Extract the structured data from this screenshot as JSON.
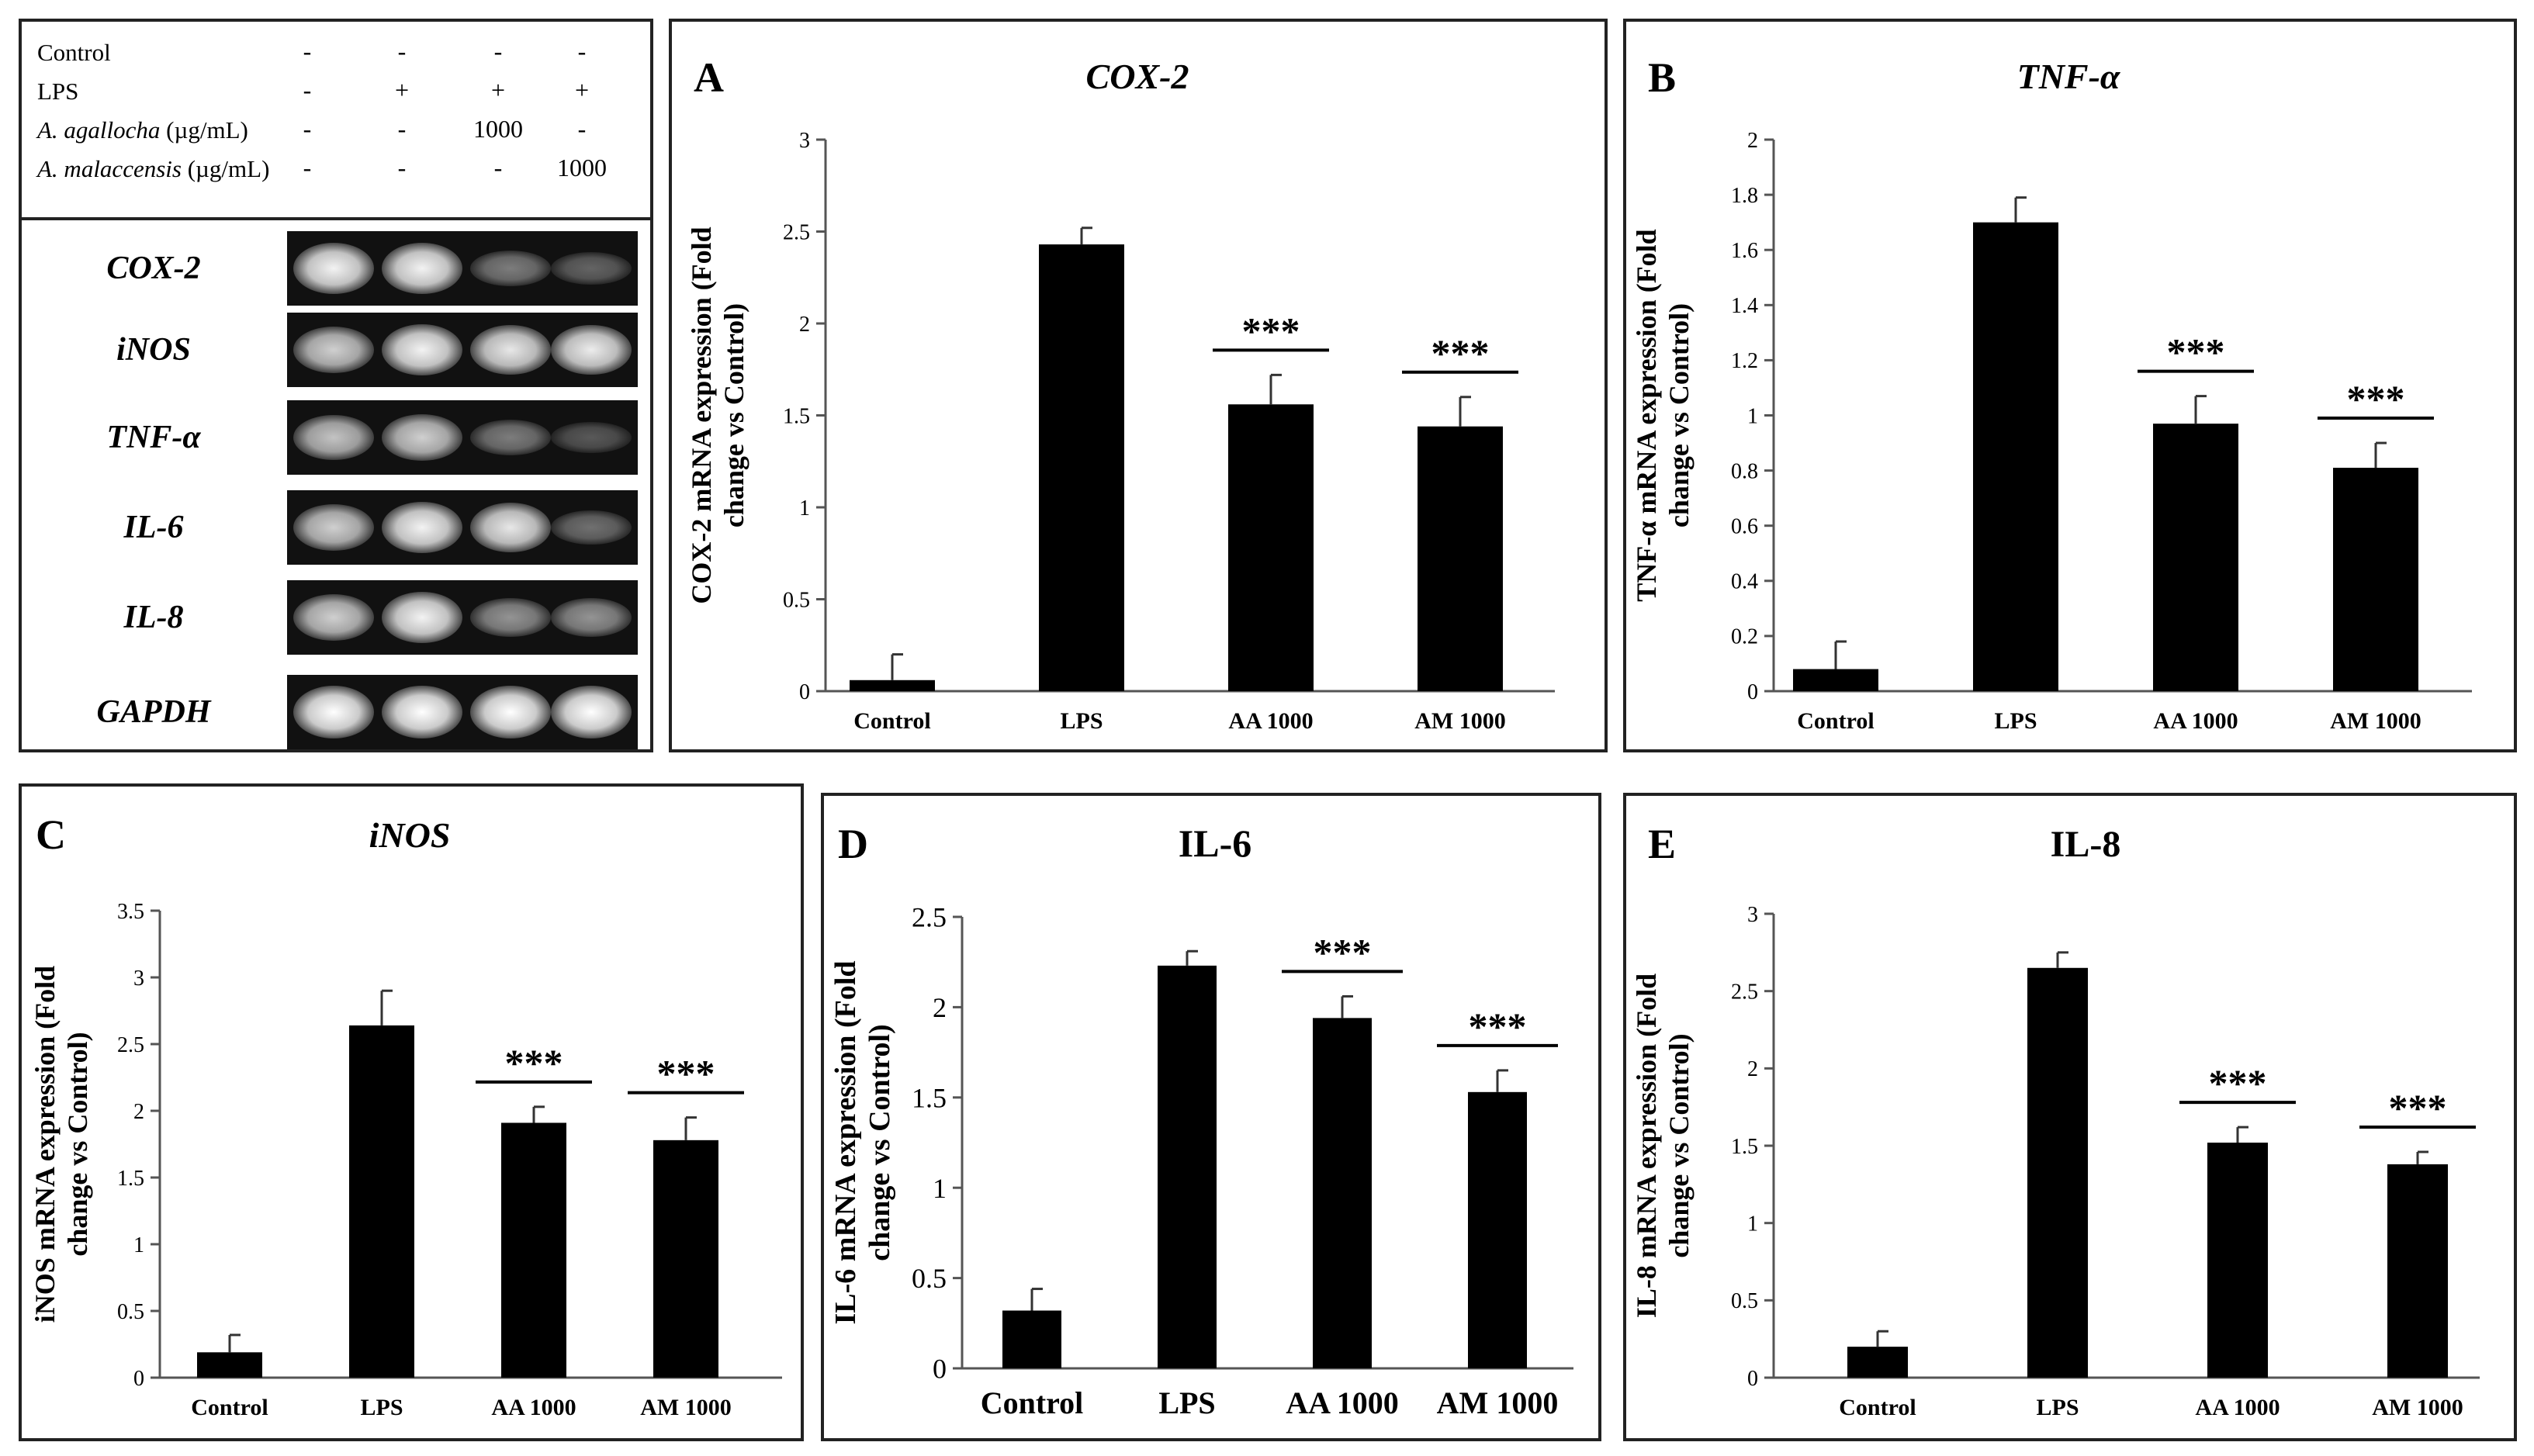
{
  "gel": {
    "conditions": [
      {
        "label": "Control",
        "unit": "",
        "signs": [
          "-",
          "-",
          "-",
          "-"
        ]
      },
      {
        "label": "LPS",
        "unit": "",
        "signs": [
          "-",
          "+",
          "+",
          "+"
        ]
      },
      {
        "label": "A. agallocha",
        "unit": " (µg/mL)",
        "signs": [
          "-",
          "-",
          "1000",
          "-"
        ]
      },
      {
        "label": "A. malaccensis",
        "unit": " (µg/mL)",
        "signs": [
          "-",
          "-",
          "-",
          "1000"
        ]
      }
    ],
    "genes": [
      "COX-2",
      "iNOS",
      "TNF-α",
      "IL-6",
      "IL-8",
      "GAPDH"
    ],
    "band_intensity": [
      [
        0.95,
        0.95,
        0.45,
        0.35
      ],
      [
        0.8,
        0.95,
        0.9,
        0.92
      ],
      [
        0.75,
        0.8,
        0.45,
        0.3
      ],
      [
        0.8,
        0.95,
        0.9,
        0.4
      ],
      [
        0.8,
        0.95,
        0.55,
        0.55
      ],
      [
        1.0,
        1.0,
        1.0,
        1.0
      ]
    ]
  },
  "chart_data": [
    {
      "id": "A",
      "type": "bar",
      "title": "COX-2",
      "ylabel_lines": [
        "COX-2 mRNA expression (Fold",
        "change vs Control)"
      ],
      "categories": [
        "Control",
        "LPS",
        "AA 1000",
        "AM 1000"
      ],
      "values": [
        0.06,
        2.43,
        1.56,
        1.44
      ],
      "errors": [
        0.14,
        0.09,
        0.16,
        0.16
      ],
      "ylim": [
        0,
        3
      ],
      "yticks": [
        "0",
        "0.5",
        "1",
        "1.5",
        "2",
        "2.5",
        "3"
      ],
      "significance": [
        "",
        "",
        "***",
        "***"
      ]
    },
    {
      "id": "B",
      "type": "bar",
      "title": "TNF-α",
      "ylabel_lines": [
        "TNF-α mRNA expression (Fold",
        "change vs Control)"
      ],
      "categories": [
        "Control",
        "LPS",
        "AA 1000",
        "AM 1000"
      ],
      "values": [
        0.08,
        1.7,
        0.97,
        0.81
      ],
      "errors": [
        0.1,
        0.09,
        0.1,
        0.09
      ],
      "ylim": [
        0,
        2
      ],
      "yticks": [
        "0",
        "0.2",
        "0.4",
        "0.6",
        "0.8",
        "1",
        "1.2",
        "1.4",
        "1.6",
        "1.8",
        "2"
      ],
      "significance": [
        "",
        "",
        "***",
        "***"
      ]
    },
    {
      "id": "C",
      "type": "bar",
      "title": "iNOS",
      "ylabel_lines": [
        "iNOS  mRNA expression (Fold",
        "change vs Control)"
      ],
      "categories": [
        "Control",
        "LPS",
        "AA 1000",
        "AM 1000"
      ],
      "values": [
        0.19,
        2.64,
        1.91,
        1.78
      ],
      "errors": [
        0.13,
        0.26,
        0.12,
        0.17
      ],
      "ylim": [
        0,
        3.5
      ],
      "yticks": [
        "0",
        "0.5",
        "1",
        "1.5",
        "2",
        "2.5",
        "3",
        "3.5"
      ],
      "significance": [
        "",
        "",
        "***",
        "***"
      ]
    },
    {
      "id": "D",
      "type": "bar",
      "title": "IL-6",
      "ylabel_lines": [
        "IL-6 mRNA expression (Fold",
        "change vs Control)"
      ],
      "categories": [
        "Control",
        "LPS",
        "AA 1000",
        "AM 1000"
      ],
      "values": [
        0.32,
        2.23,
        1.94,
        1.53
      ],
      "errors": [
        0.12,
        0.08,
        0.12,
        0.12
      ],
      "ylim": [
        0,
        2.5
      ],
      "yticks": [
        "0",
        "0.5",
        "1",
        "1.5",
        "2",
        "2.5"
      ],
      "significance": [
        "",
        "",
        "***",
        "***"
      ]
    },
    {
      "id": "E",
      "type": "bar",
      "title": "IL-8",
      "ylabel_lines": [
        "IL-8 mRNA expression (Fold",
        "change vs Control)"
      ],
      "categories": [
        "Control",
        "LPS",
        "AA 1000",
        "AM 1000"
      ],
      "values": [
        0.2,
        2.65,
        1.52,
        1.38
      ],
      "errors": [
        0.1,
        0.1,
        0.1,
        0.08
      ],
      "ylim": [
        0,
        3
      ],
      "yticks": [
        "0",
        "0.5",
        "1",
        "1.5",
        "2",
        "2.5",
        "3"
      ],
      "significance": [
        "",
        "",
        "***",
        "***"
      ]
    }
  ]
}
